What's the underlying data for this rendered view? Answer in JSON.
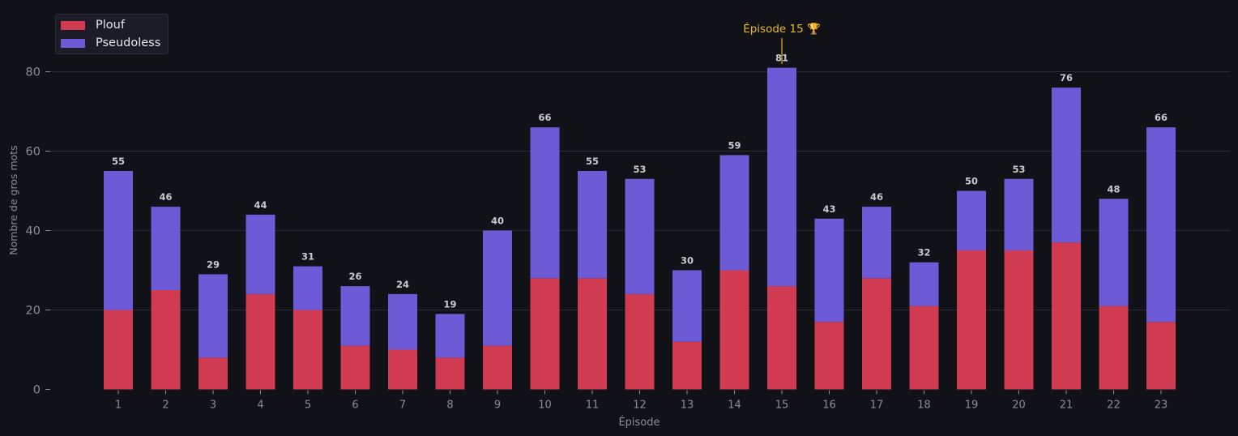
{
  "chart_data": {
    "type": "bar",
    "stacked": true,
    "categories": [
      "1",
      "2",
      "3",
      "4",
      "5",
      "6",
      "7",
      "8",
      "9",
      "10",
      "11",
      "12",
      "13",
      "14",
      "15",
      "16",
      "17",
      "18",
      "19",
      "20",
      "21",
      "22",
      "23"
    ],
    "series": [
      {
        "name": "Plouf",
        "color": "#d03b52",
        "values": [
          20,
          25,
          8,
          24,
          20,
          11,
          10,
          8,
          11,
          28,
          28,
          24,
          12,
          30,
          26,
          17,
          28,
          21,
          35,
          35,
          37,
          21,
          17
        ]
      },
      {
        "name": "Pseudoless",
        "color": "#6c5ad6",
        "values": [
          35,
          21,
          21,
          20,
          11,
          15,
          14,
          11,
          29,
          38,
          27,
          29,
          18,
          29,
          55,
          26,
          18,
          11,
          15,
          18,
          39,
          27,
          49
        ]
      }
    ],
    "totals": [
      55,
      46,
      29,
      44,
      31,
      26,
      24,
      19,
      40,
      66,
      55,
      53,
      30,
      59,
      81,
      43,
      46,
      32,
      50,
      53,
      76,
      48,
      66
    ],
    "title": "",
    "xlabel": "Épisode",
    "ylabel": "Nombre de gros mots",
    "ylim": [
      0,
      95
    ],
    "yticks": [
      0,
      20,
      40,
      60,
      80
    ],
    "grid": true,
    "legend_position": "top-left",
    "annotation": {
      "text": "Épisode 15 🏆",
      "category": "15",
      "color": "#e8b82a"
    }
  },
  "colors": {
    "background": "#111217",
    "grid": "#2a2b35",
    "axis_text": "#8a8c98",
    "value_label": "#c8c8d0"
  }
}
